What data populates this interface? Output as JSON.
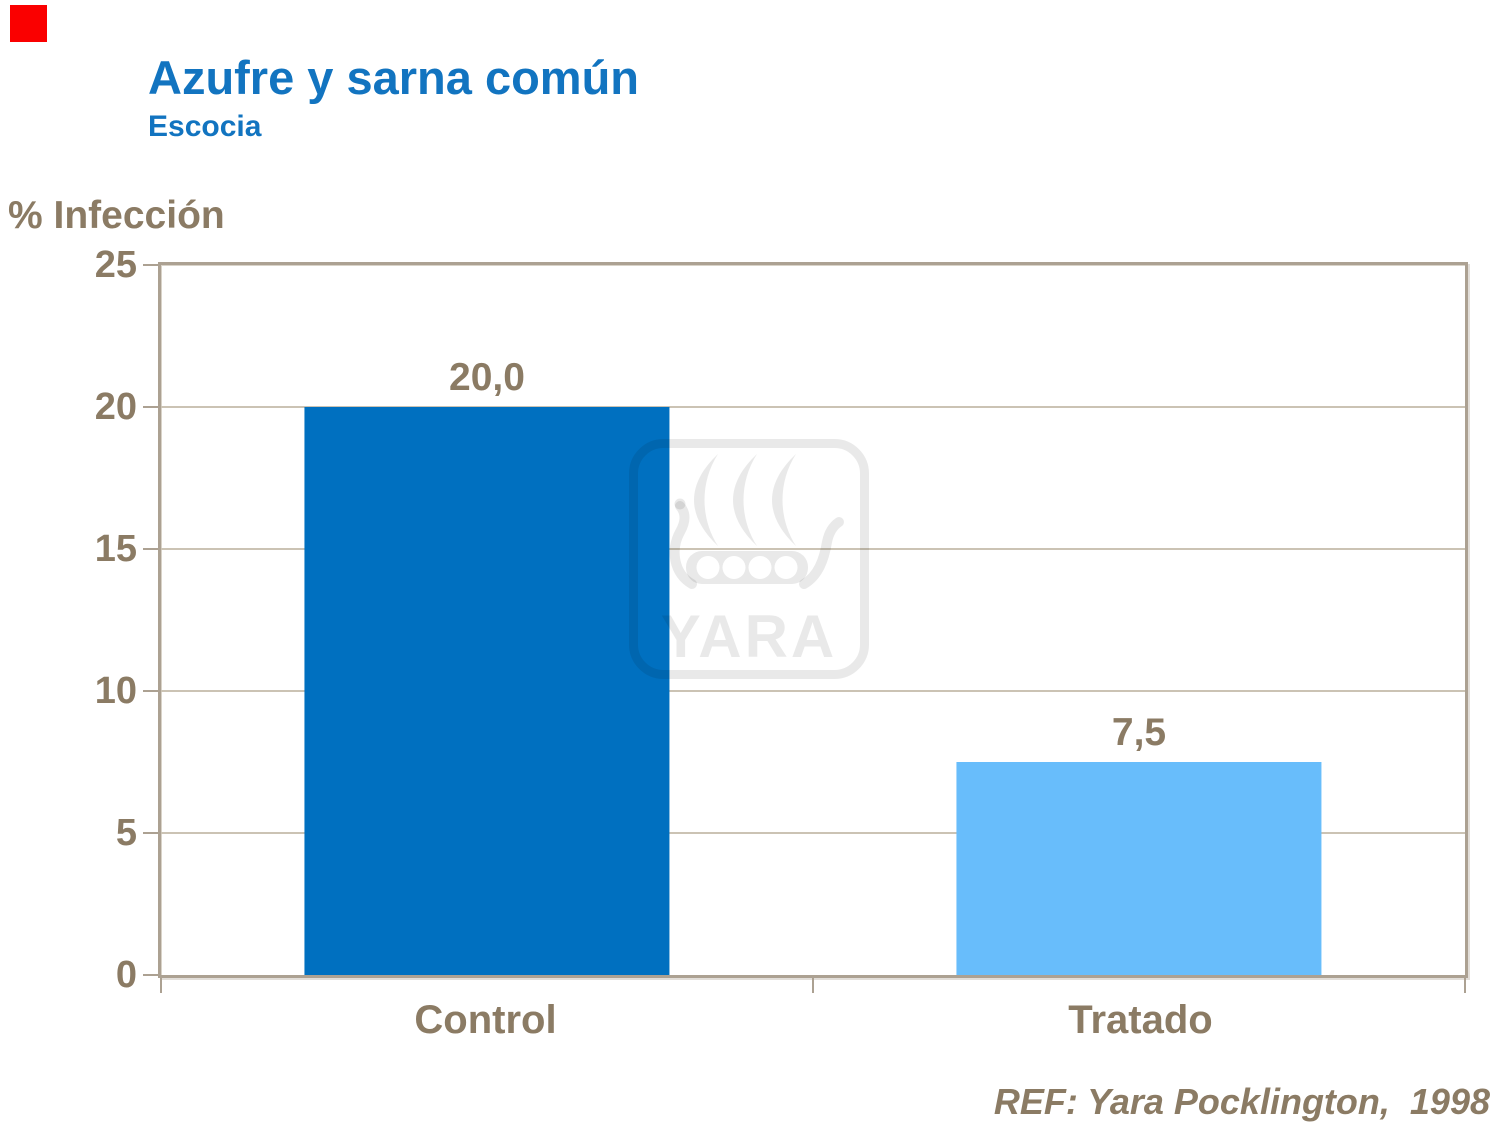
{
  "slide": {
    "title": "Azufre y sarna común",
    "subtitle": "Escocia",
    "reference": "REF: Yara Pocklington,  1998",
    "watermark_text": "YARA"
  },
  "chart_data": {
    "type": "bar",
    "title": "Azufre y sarna común — Escocia",
    "categories": [
      "Control",
      "Tratado"
    ],
    "values": [
      20.0,
      7.5
    ],
    "value_labels": [
      "20,0",
      "7,5"
    ],
    "xlabel": "",
    "ylabel": "% Infección",
    "ylim": [
      0,
      25
    ],
    "yticks": [
      0,
      5,
      10,
      15,
      20,
      25
    ],
    "grid": true,
    "legend": false,
    "bar_colors": [
      "#0070C0",
      "#68BDFB"
    ]
  },
  "colors": {
    "title_blue": "#1274C0",
    "text_brown": "#8B7B64",
    "axis_tan": "#ACA192",
    "gridline_tan": "#CBC3B4",
    "watermark_gray": "rgba(0,0,0,0.088)",
    "red_marker": "#FA0000"
  }
}
